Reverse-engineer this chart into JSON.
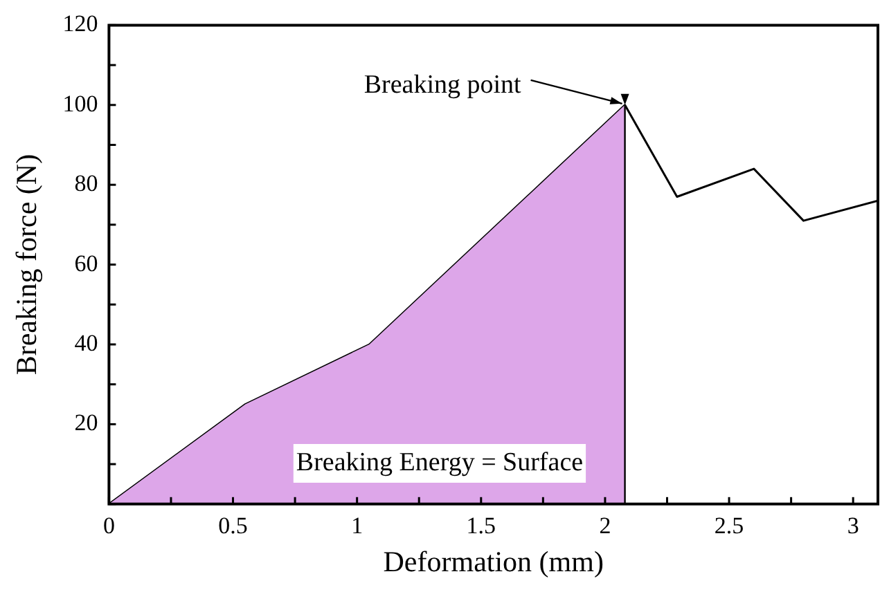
{
  "chart_data": {
    "type": "line",
    "xlabel": "Deformation (mm)",
    "ylabel": "Breaking force (N)",
    "series": [
      {
        "type": "area",
        "color": "#dda6e9",
        "x": [
          0,
          0.55,
          1.05,
          2.08
        ],
        "values": [
          0,
          25,
          40,
          100
        ]
      },
      {
        "type": "line",
        "color": "#000000",
        "x": [
          0,
          0.55,
          1.05,
          2.08,
          2.29,
          2.6,
          2.8,
          3.1
        ],
        "values": [
          0,
          25,
          40,
          100,
          77,
          84,
          71,
          76
        ]
      }
    ],
    "xlim": [
      0,
      3.1
    ],
    "xticks": [
      0,
      {
        "value": 0.25,
        "label": null
      },
      0.5,
      {
        "value": 0.75,
        "label": null
      },
      1,
      {
        "value": 1.25,
        "label": null
      },
      1.5,
      {
        "value": 1.75,
        "label": null
      },
      2,
      {
        "value": 2.25,
        "label": null
      },
      2.5,
      {
        "value": 2.75,
        "label": null
      },
      3
    ],
    "ylim": [
      0,
      120
    ],
    "yticks": [
      {
        "value": 0,
        "label": null
      },
      {
        "value": 10,
        "label": null
      },
      20,
      {
        "value": 30,
        "label": null
      },
      40,
      {
        "value": 50,
        "label": null
      },
      60,
      {
        "value": 70,
        "label": null
      },
      80,
      {
        "value": 90,
        "label": null
      },
      100,
      {
        "value": 110,
        "label": null
      },
      120
    ],
    "ref_lines": [
      {
        "axis": "x",
        "value": 2.08,
        "color": "#000000"
      }
    ],
    "annotations": [
      {
        "text": "Breaking point",
        "x": 2.08,
        "y": 100
      },
      "Breaking Energy = Surface"
    ],
    "grid": false,
    "legend": false,
    "marker": "none",
    "line_style": "solid"
  }
}
